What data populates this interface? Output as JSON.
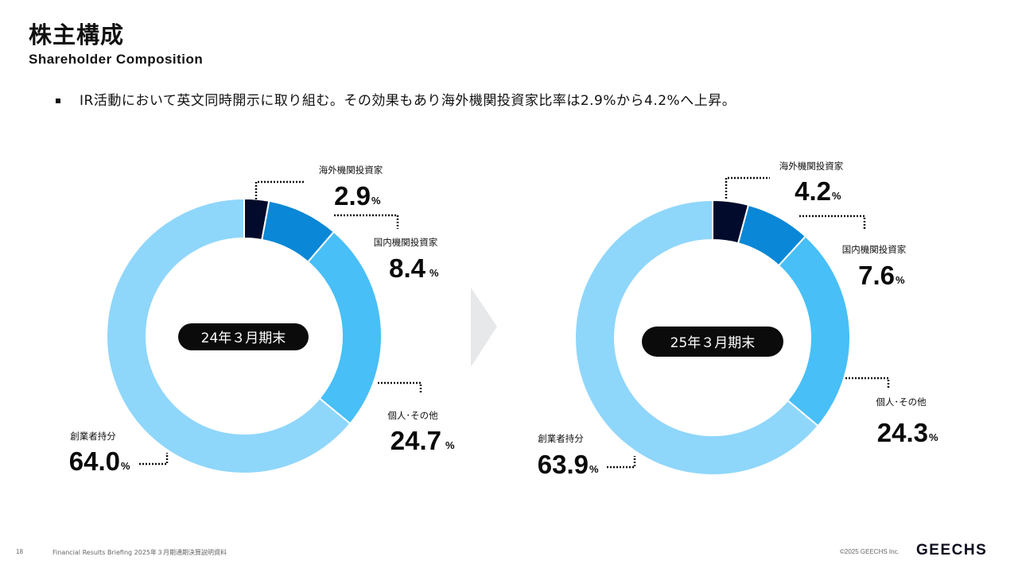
{
  "page": {
    "title": "株主構成",
    "subtitle": "Shareholder Composition",
    "bullet": "IR活動において英文同時開示に取り組む。その効果もあり海外機関投資家比率は2.9%から4.2%へ上昇。"
  },
  "footer": {
    "page_number": "18",
    "doc_title": "Financial Results Briefing 2025年３月期通期決算説明資料",
    "copyright": "©2025 GEECHS Inc.",
    "logo": "GEECHS"
  },
  "colors": {
    "foreign": "#020b2c",
    "domestic": "#0a87d6",
    "individual": "#48bff7",
    "founder": "#8fd6fb",
    "arrow": "#e6e8ea"
  },
  "chart_data": [
    {
      "type": "pie",
      "center_label": "24年３月期末",
      "categories": [
        "海外機関投資家",
        "国内機関投資家",
        "個人･その他",
        "創業者持分"
      ],
      "values": [
        2.9,
        8.4,
        24.7,
        64.0
      ],
      "value_labels": [
        "2.9",
        "8.4",
        "24.7",
        "64.0"
      ],
      "unit": "%"
    },
    {
      "type": "pie",
      "center_label": "25年３月期末",
      "categories": [
        "海外機関投資家",
        "国内機関投資家",
        "個人･その他",
        "創業者持分"
      ],
      "values": [
        4.2,
        7.6,
        24.3,
        63.9
      ],
      "value_labels": [
        "4.2",
        "7.6",
        "24.3",
        "63.9"
      ],
      "unit": "%"
    }
  ]
}
